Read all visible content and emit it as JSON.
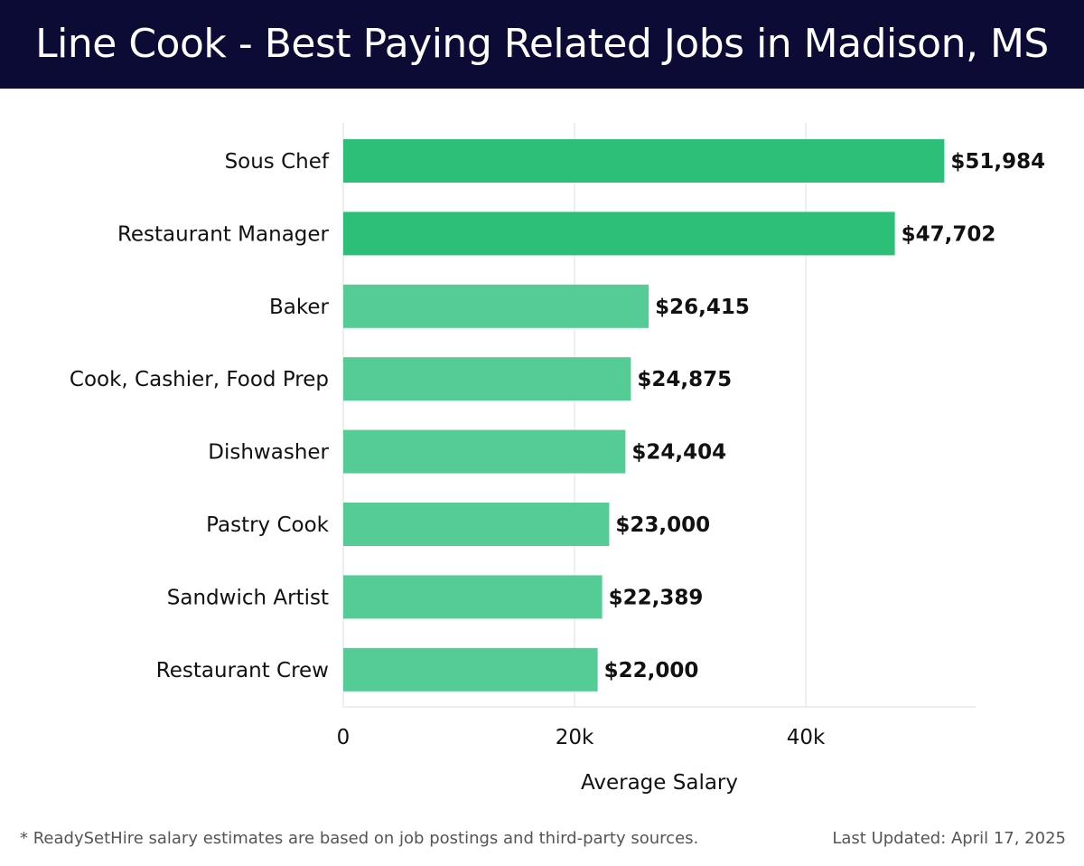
{
  "header": {
    "title": "Line Cook - Best Paying Related Jobs in Madison, MS"
  },
  "chart_data": {
    "type": "bar",
    "orientation": "horizontal",
    "categories": [
      "Sous Chef",
      "Restaurant Manager",
      "Baker",
      "Cook, Cashier, Food Prep",
      "Dishwasher",
      "Pastry Cook",
      "Sandwich Artist",
      "Restaurant Crew"
    ],
    "values": [
      51984,
      47702,
      26415,
      24875,
      24404,
      23000,
      22389,
      22000
    ],
    "value_labels": [
      "$51,984",
      "$47,702",
      "$26,415",
      "$24,875",
      "$24,404",
      "$23,000",
      "$22,389",
      "$22,000"
    ],
    "xlabel": "Average Salary",
    "ylabel": "",
    "xlim": [
      0,
      55000
    ],
    "x_ticks": [
      0,
      20000,
      40000
    ],
    "x_tick_labels": [
      "0",
      "20k",
      "40k"
    ],
    "grid": true,
    "colors": {
      "highlight": "#2bbf78",
      "default": "#55cc95",
      "grid": "#e2e2e2",
      "axis": "#dddddd",
      "label": "#111111"
    },
    "highlight_count": 2
  },
  "footer": {
    "note": "* ReadySetHire salary estimates are based on job postings and third-party sources.",
    "updated": "Last Updated: April 17, 2025"
  }
}
